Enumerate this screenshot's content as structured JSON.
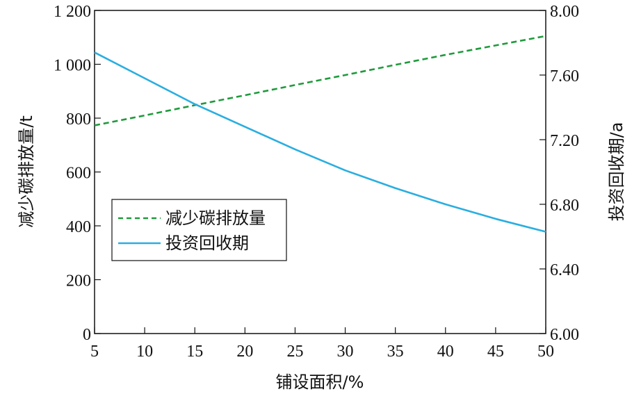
{
  "chart_data": {
    "type": "line",
    "xlabel": "铺设面积/%",
    "ylabel_left": "减少碳排放量/t",
    "ylabel_right": "投资回收期/a",
    "x": [
      5,
      10,
      15,
      20,
      25,
      30,
      35,
      40,
      45,
      50
    ],
    "x_ticks": [
      "5",
      "10",
      "15",
      "20",
      "25",
      "30",
      "35",
      "40",
      "45",
      "50"
    ],
    "xlim": [
      5,
      50
    ],
    "ylim_left": [
      0,
      1200
    ],
    "ylim_right": [
      6.0,
      8.0
    ],
    "y_ticks_left": [
      "0",
      "200",
      "400",
      "600",
      "800",
      "1 000",
      "1 200"
    ],
    "y_ticks_right": [
      "6.00",
      "6.40",
      "6.80",
      "7.20",
      "7.60",
      "8.00"
    ],
    "grid": false,
    "legend_position": "center-left",
    "series": [
      {
        "name": "减少碳排放量",
        "axis": "left",
        "style": "dashed",
        "color": "#1f9a3c",
        "values": [
          773,
          810,
          848,
          885,
          923,
          960,
          998,
          1035,
          1070,
          1105
        ]
      },
      {
        "name": "投资回收期",
        "axis": "right",
        "style": "solid",
        "color": "#2aaee0",
        "values": [
          7.74,
          7.58,
          7.42,
          7.28,
          7.14,
          7.01,
          6.9,
          6.8,
          6.71,
          6.63
        ]
      }
    ]
  }
}
